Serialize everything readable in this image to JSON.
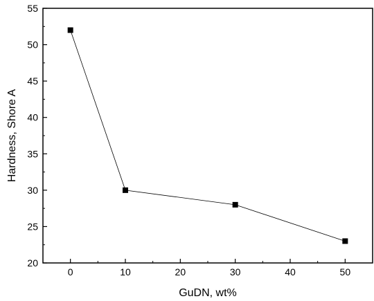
{
  "chart_data": {
    "type": "line",
    "title": "",
    "xlabel": "GuDN, wt%",
    "ylabel": "Hardness, Shore A",
    "xlim": [
      -5,
      55
    ],
    "ylim": [
      20,
      55
    ],
    "x_ticks": [
      0,
      10,
      20,
      30,
      40,
      50
    ],
    "y_ticks": [
      20,
      25,
      30,
      35,
      40,
      45,
      50,
      55
    ],
    "grid": false,
    "legend": "none",
    "series": [
      {
        "x": [
          0,
          10,
          30,
          50
        ],
        "y": [
          52,
          30,
          28,
          23
        ],
        "marker": "square",
        "color": "#000000"
      }
    ]
  }
}
